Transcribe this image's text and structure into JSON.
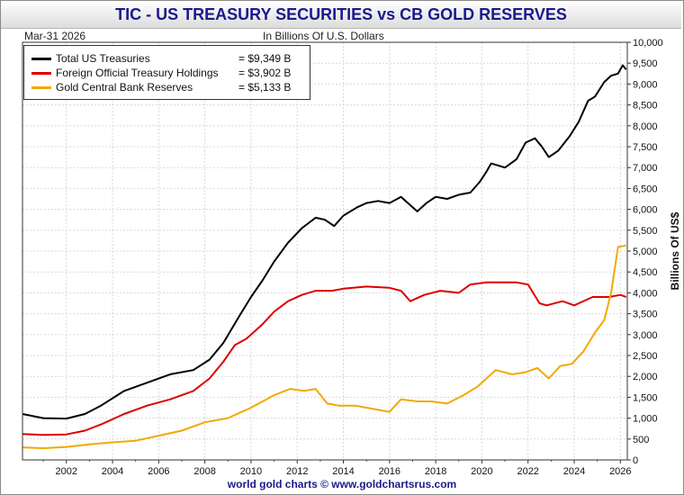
{
  "header": {
    "title": "TIC - US TREASURY SECURITIES vs CB GOLD RESERVES",
    "date": "Mar-31  2026",
    "units": "In Billions Of U.S. Dollars",
    "footer": "world gold charts © www.goldchartsrus.com"
  },
  "legend": [
    {
      "name": "Total US Treasuries",
      "value": "= $9,349 B",
      "color": "#000000"
    },
    {
      "name": "Foreign Official Treasury Holdings",
      "value": "= $3,902 B",
      "color": "#dd0000"
    },
    {
      "name": "Gold Central Bank Reserves",
      "value": "= $5,133 B",
      "color": "#f2a900"
    }
  ],
  "chart_data": {
    "type": "line",
    "ylabel": "Billions Of US$",
    "xlim": [
      2000.1,
      2026.3
    ],
    "ylim": [
      0,
      10000
    ],
    "yticks": [
      0,
      500,
      1000,
      1500,
      2000,
      2500,
      3000,
      3500,
      4000,
      4500,
      5000,
      5500,
      6000,
      6500,
      7000,
      7500,
      8000,
      8500,
      9000,
      9500,
      10000
    ],
    "ytick_labels": [
      "0",
      "500",
      "1,000",
      "1,500",
      "2,000",
      "2,500",
      "3,000",
      "3,500",
      "4,000",
      "4,500",
      "5,000",
      "5,500",
      "6,000",
      "6,500",
      "7,000",
      "7,500",
      "8,000",
      "8,500",
      "9,000",
      "9,500",
      "10,000"
    ],
    "xticks": [
      2002,
      2004,
      2006,
      2008,
      2010,
      2012,
      2014,
      2016,
      2018,
      2020,
      2022,
      2024,
      2026
    ],
    "xtick_labels": [
      "2002",
      "2004",
      "2006",
      "2008",
      "2010",
      "2012",
      "2014",
      "2016",
      "2018",
      "2020",
      "2022",
      "2024",
      "2026"
    ],
    "grid": true,
    "legend_position": "top-left",
    "series": [
      {
        "name": "Total US Treasuries",
        "color": "#000000",
        "x": [
          2000.1,
          2001.0,
          2002.0,
          2002.8,
          2003.5,
          2004.5,
          2005.5,
          2006.5,
          2007.5,
          2008.2,
          2008.8,
          2009.5,
          2010.0,
          2010.5,
          2011.0,
          2011.6,
          2012.2,
          2012.8,
          2013.2,
          2013.6,
          2014.0,
          2014.6,
          2015.0,
          2015.5,
          2016.0,
          2016.5,
          2016.9,
          2017.2,
          2017.6,
          2018.0,
          2018.5,
          2019.0,
          2019.5,
          2019.9,
          2020.2,
          2020.4,
          2021.0,
          2021.5,
          2021.9,
          2022.3,
          2022.6,
          2022.9,
          2023.3,
          2023.8,
          2024.2,
          2024.6,
          2024.9,
          2025.3,
          2025.6,
          2025.9,
          2026.1,
          2026.25
        ],
        "y": [
          1100,
          1000,
          990,
          1100,
          1300,
          1650,
          1850,
          2050,
          2150,
          2400,
          2800,
          3450,
          3900,
          4300,
          4750,
          5200,
          5550,
          5800,
          5750,
          5600,
          5850,
          6050,
          6150,
          6200,
          6150,
          6300,
          6100,
          5950,
          6150,
          6300,
          6250,
          6350,
          6400,
          6650,
          6900,
          7100,
          7000,
          7200,
          7600,
          7700,
          7500,
          7250,
          7400,
          7750,
          8100,
          8600,
          8700,
          9050,
          9200,
          9250,
          9450,
          9349
        ]
      },
      {
        "name": "Foreign Official Treasury Holdings",
        "color": "#dd0000",
        "x": [
          2000.1,
          2001.0,
          2002.0,
          2002.8,
          2003.5,
          2004.5,
          2005.5,
          2006.5,
          2007.5,
          2008.2,
          2008.8,
          2009.3,
          2009.8,
          2010.5,
          2011.0,
          2011.6,
          2012.2,
          2012.8,
          2013.5,
          2014.0,
          2015.0,
          2016.0,
          2016.5,
          2016.9,
          2017.5,
          2018.2,
          2019.0,
          2019.5,
          2020.2,
          2021.0,
          2021.5,
          2022.0,
          2022.5,
          2022.8,
          2023.5,
          2024.0,
          2024.8,
          2025.5,
          2026.0,
          2026.25
        ],
        "y": [
          620,
          600,
          610,
          700,
          850,
          1100,
          1300,
          1450,
          1650,
          1950,
          2350,
          2750,
          2900,
          3250,
          3550,
          3800,
          3950,
          4050,
          4050,
          4100,
          4150,
          4120,
          4050,
          3800,
          3950,
          4050,
          4000,
          4200,
          4250,
          4250,
          4250,
          4200,
          3750,
          3700,
          3800,
          3700,
          3900,
          3900,
          3950,
          3902
        ]
      },
      {
        "name": "Gold Central Bank Reserves",
        "color": "#f2a900",
        "x": [
          2000.1,
          2001.0,
          2002.0,
          2003.0,
          2004.0,
          2005.0,
          2006.0,
          2007.0,
          2008.0,
          2009.0,
          2010.0,
          2011.0,
          2011.7,
          2012.3,
          2012.8,
          2013.3,
          2013.8,
          2014.5,
          2015.0,
          2016.0,
          2016.5,
          2017.2,
          2017.8,
          2018.5,
          2019.2,
          2019.8,
          2020.6,
          2021.3,
          2021.9,
          2022.4,
          2022.9,
          2023.4,
          2023.9,
          2024.4,
          2024.9,
          2025.3,
          2025.6,
          2025.9,
          2026.25
        ],
        "y": [
          300,
          280,
          310,
          370,
          420,
          460,
          580,
          700,
          900,
          1000,
          1250,
          1550,
          1700,
          1650,
          1700,
          1350,
          1300,
          1300,
          1250,
          1150,
          1450,
          1400,
          1400,
          1350,
          1550,
          1750,
          2150,
          2050,
          2100,
          2200,
          1950,
          2250,
          2300,
          2600,
          3050,
          3350,
          4000,
          5100,
          5133
        ]
      }
    ]
  }
}
